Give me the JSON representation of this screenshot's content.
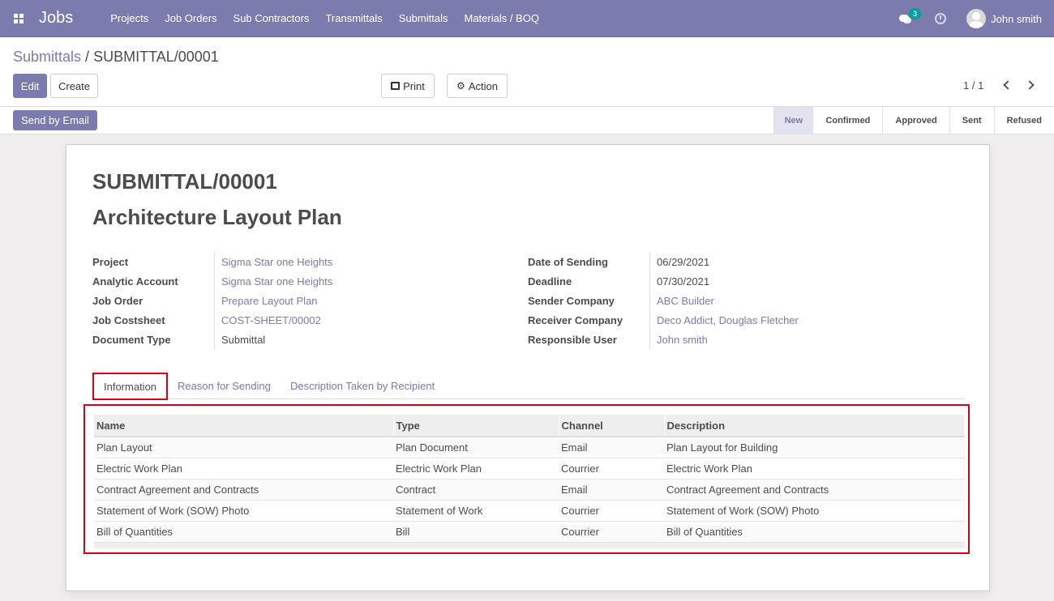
{
  "app": {
    "brand": "Jobs",
    "menu": [
      "Projects",
      "Job Orders",
      "Sub Contractors",
      "Transmittals",
      "Submittals",
      "Materials / BOQ"
    ],
    "chat_badge": "3",
    "username": "John smith"
  },
  "breadcrumb": {
    "parent": "Submittals",
    "separator": " / ",
    "current": "SUBMITTAL/00001"
  },
  "buttons": {
    "edit": "Edit",
    "create": "Create",
    "print": "Print",
    "action": "Action",
    "send_email": "Send by Email"
  },
  "pager": {
    "value": "1 / 1"
  },
  "stages": [
    "New",
    "Confirmed",
    "Approved",
    "Sent",
    "Refused"
  ],
  "active_stage": "New",
  "record": {
    "ref": "SUBMITTAL/00001",
    "title": "Architecture Layout Plan",
    "left_fields": [
      {
        "label": "Project",
        "value": "Sigma Star one Heights",
        "link": true
      },
      {
        "label": "Analytic Account",
        "value": "Sigma Star one Heights",
        "link": true
      },
      {
        "label": "Job Order",
        "value": "Prepare Layout Plan",
        "link": true
      },
      {
        "label": "Job Costsheet",
        "value": "COST-SHEET/00002",
        "link": true
      },
      {
        "label": "Document Type",
        "value": "Submittal",
        "link": false
      }
    ],
    "right_fields": [
      {
        "label": "Date of Sending",
        "value": "06/29/2021",
        "link": false
      },
      {
        "label": "Deadline",
        "value": "07/30/2021",
        "link": false
      },
      {
        "label": "Sender Company",
        "value": "ABC Builder",
        "link": true
      },
      {
        "label": "Receiver Company",
        "value": "Deco Addict, Douglas Fletcher",
        "link": true
      },
      {
        "label": "Responsible User",
        "value": "John smith",
        "link": true
      }
    ]
  },
  "tabs": [
    "Information",
    "Reason for Sending",
    "Description Taken by Recipient"
  ],
  "table": {
    "headers": [
      "Name",
      "Type",
      "Channel",
      "Description"
    ],
    "rows": [
      [
        "Plan Layout",
        "Plan Document",
        "Email",
        "Plan Layout for Building"
      ],
      [
        "Electric Work Plan",
        "Electric Work Plan",
        "Courrier",
        "Electric Work Plan"
      ],
      [
        "Contract Agreement and Contracts",
        "Contract",
        "Email",
        "Contract Agreement and Contracts"
      ],
      [
        "Statement of Work (SOW) Photo",
        "Statement of Work",
        "Courrier",
        "Statement of Work (SOW) Photo"
      ],
      [
        "Bill of Quantities",
        "Bill",
        "Courrier",
        "Bill of Quantities"
      ]
    ]
  },
  "colors": {
    "brand": "#7c7bad",
    "highlight": "#d0021b"
  }
}
